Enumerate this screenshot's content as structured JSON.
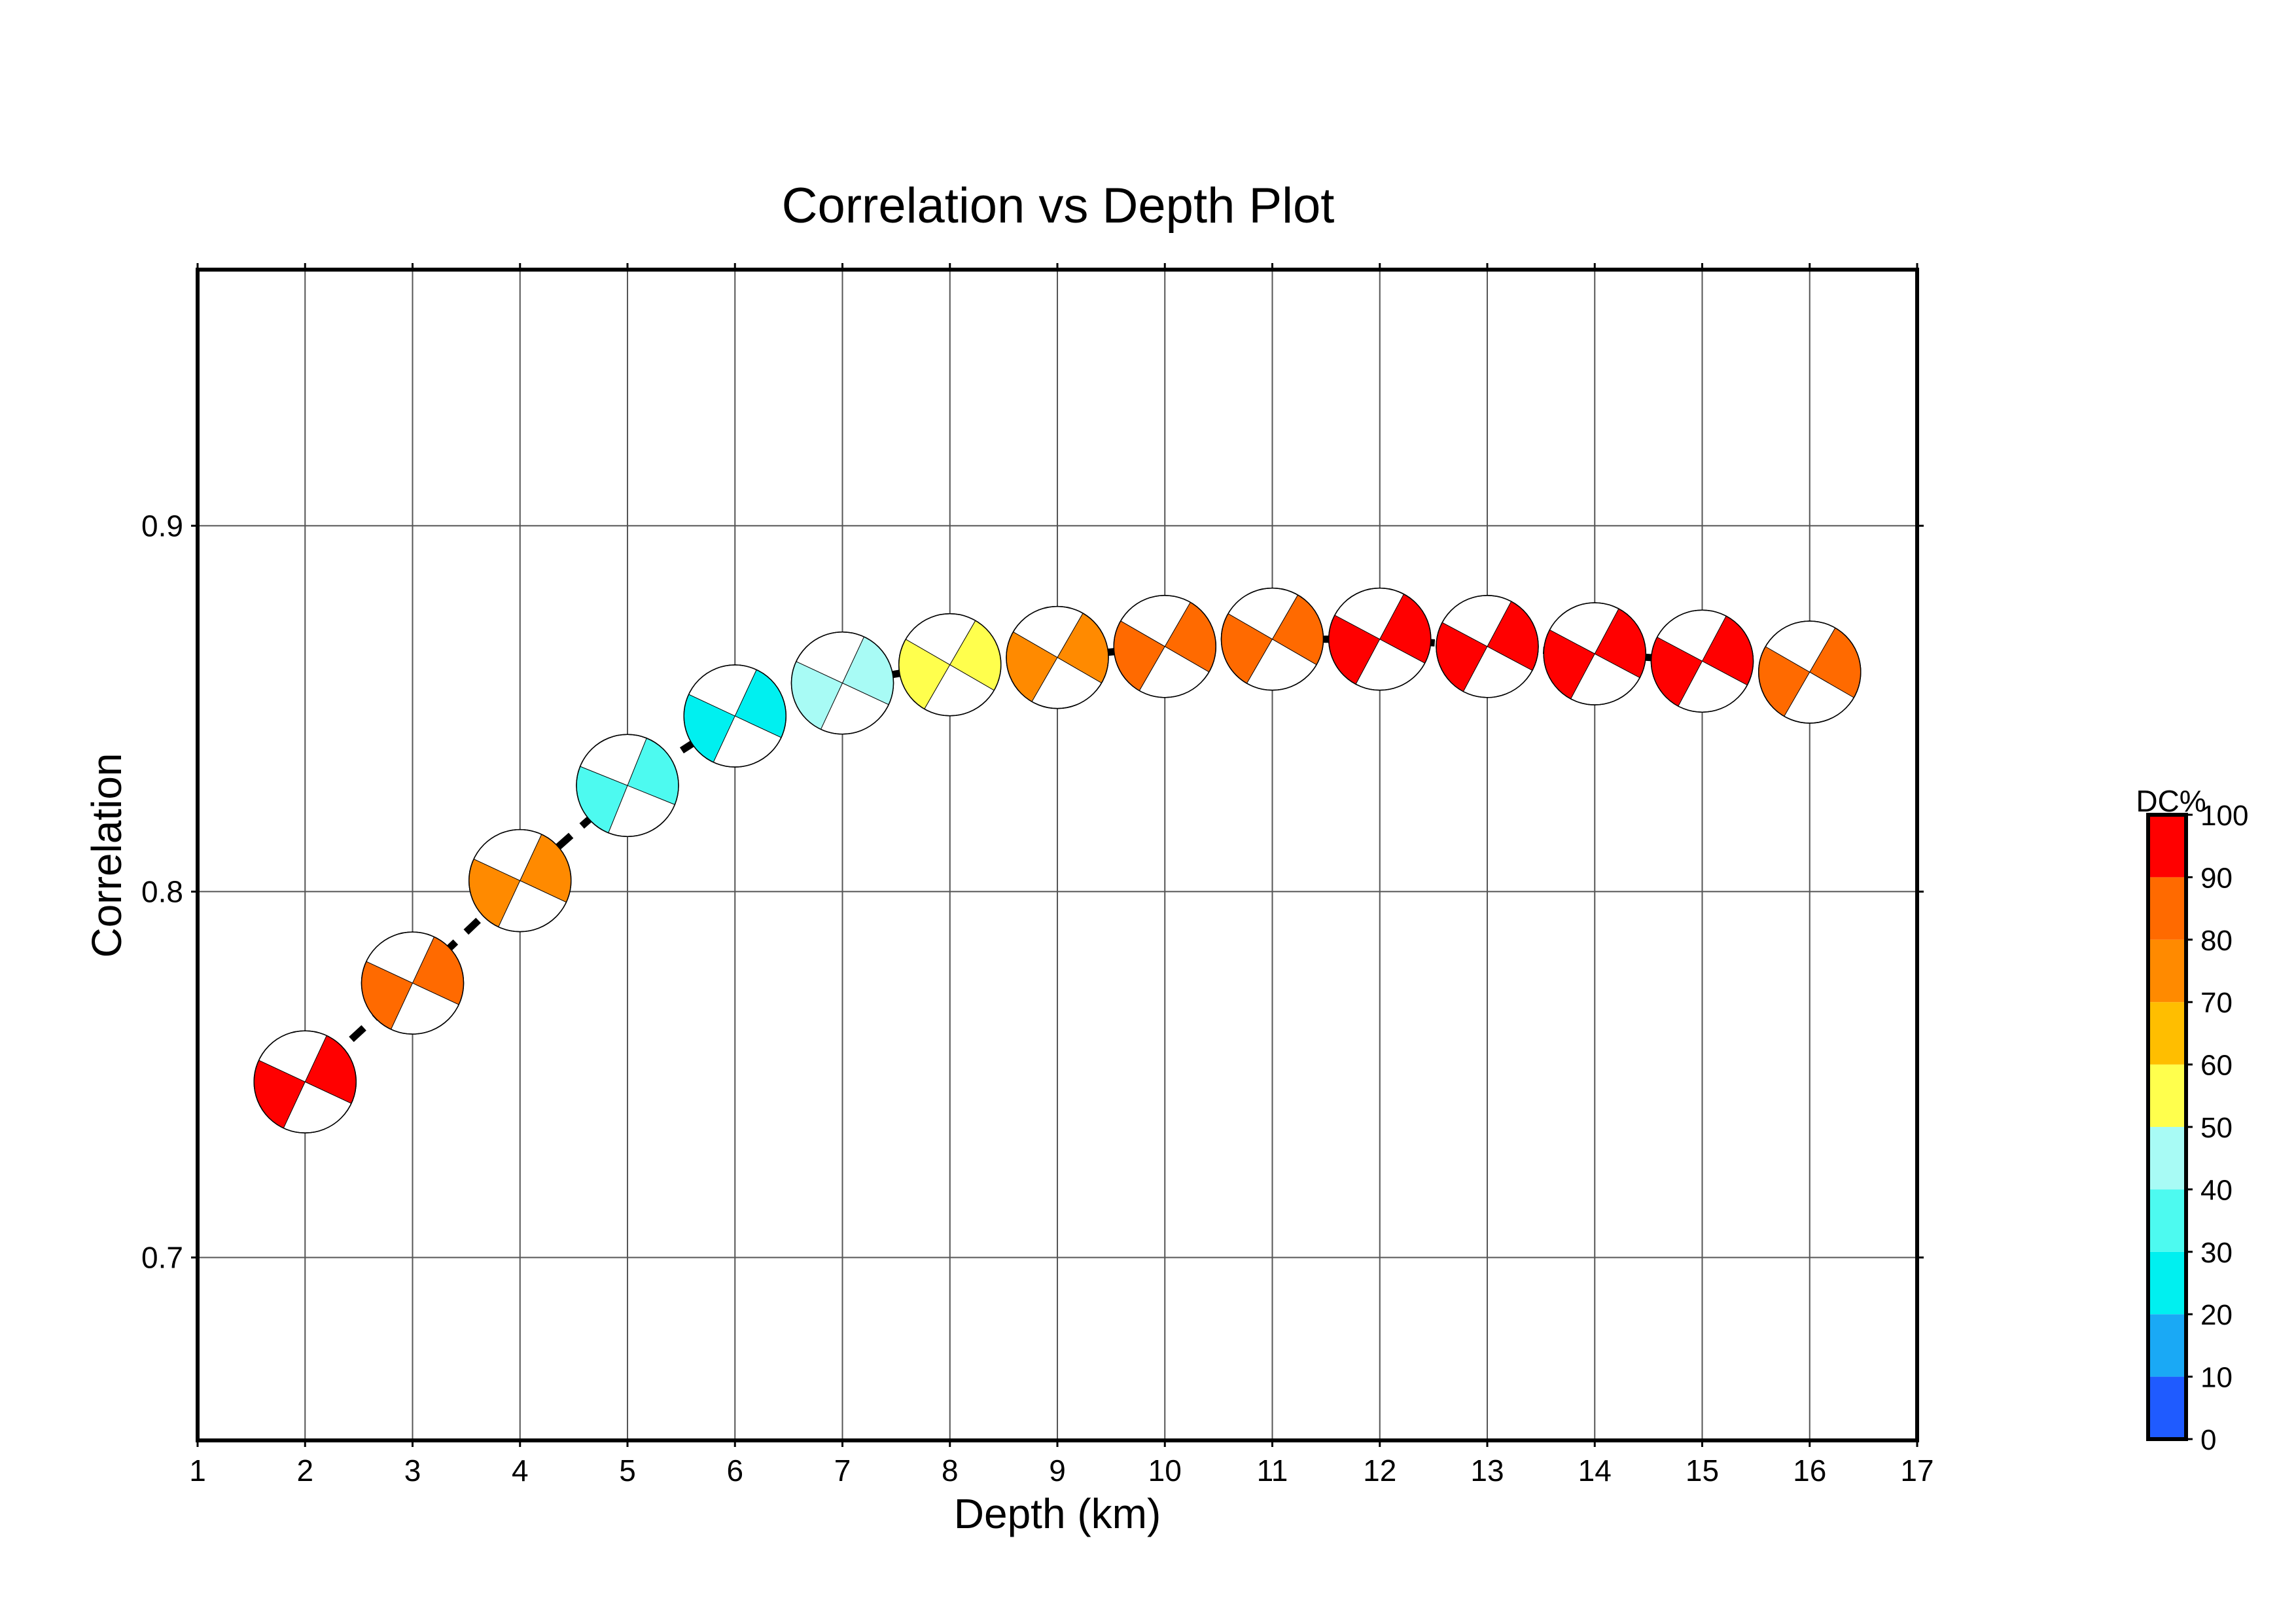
{
  "chart_data": {
    "type": "scatter",
    "title": "Correlation vs Depth Plot",
    "xlabel": "Depth (km)",
    "ylabel": "Correlation",
    "xlim": [
      1,
      17
    ],
    "ylim": [
      0.65,
      0.97
    ],
    "x_ticks": [
      "1",
      "2",
      "3",
      "4",
      "5",
      "6",
      "7",
      "8",
      "9",
      "10",
      "11",
      "12",
      "13",
      "14",
      "15",
      "16",
      "17"
    ],
    "y_ticks": [
      "0.7",
      "0.8",
      "0.9"
    ],
    "grid": true,
    "line_style": "dashed-black",
    "series": [
      {
        "points": [
          {
            "depth": 2,
            "correlation": 0.748,
            "dc_percent": 95,
            "strike": 115
          },
          {
            "depth": 3,
            "correlation": 0.775,
            "dc_percent": 85,
            "strike": 115
          },
          {
            "depth": 4,
            "correlation": 0.803,
            "dc_percent": 75,
            "strike": 115
          },
          {
            "depth": 5,
            "correlation": 0.829,
            "dc_percent": 35,
            "strike": 112
          },
          {
            "depth": 6,
            "correlation": 0.848,
            "dc_percent": 25,
            "strike": 115
          },
          {
            "depth": 7,
            "correlation": 0.857,
            "dc_percent": 45,
            "strike": 115
          },
          {
            "depth": 8,
            "correlation": 0.862,
            "dc_percent": 55,
            "strike": 120
          },
          {
            "depth": 9,
            "correlation": 0.864,
            "dc_percent": 75,
            "strike": 120
          },
          {
            "depth": 10,
            "correlation": 0.867,
            "dc_percent": 85,
            "strike": 120
          },
          {
            "depth": 11,
            "correlation": 0.869,
            "dc_percent": 85,
            "strike": 120
          },
          {
            "depth": 12,
            "correlation": 0.869,
            "dc_percent": 95,
            "strike": 118
          },
          {
            "depth": 13,
            "correlation": 0.867,
            "dc_percent": 95,
            "strike": 118
          },
          {
            "depth": 14,
            "correlation": 0.865,
            "dc_percent": 95,
            "strike": 118
          },
          {
            "depth": 15,
            "correlation": 0.863,
            "dc_percent": 95,
            "strike": 118
          },
          {
            "depth": 16,
            "correlation": 0.86,
            "dc_percent": 85,
            "strike": 120
          }
        ]
      }
    ],
    "colorbar": {
      "label": "DC%",
      "ticks": [
        "0",
        "10",
        "20",
        "30",
        "40",
        "50",
        "60",
        "70",
        "80",
        "90",
        "100"
      ],
      "colors": [
        "#1f5bff",
        "#1aa9f5",
        "#00f0f0",
        "#4dfaf0",
        "#a8fbf5",
        "#ffff4d",
        "#ffbe00",
        "#ff8a00",
        "#ff6a00",
        "#ff0000"
      ]
    }
  }
}
